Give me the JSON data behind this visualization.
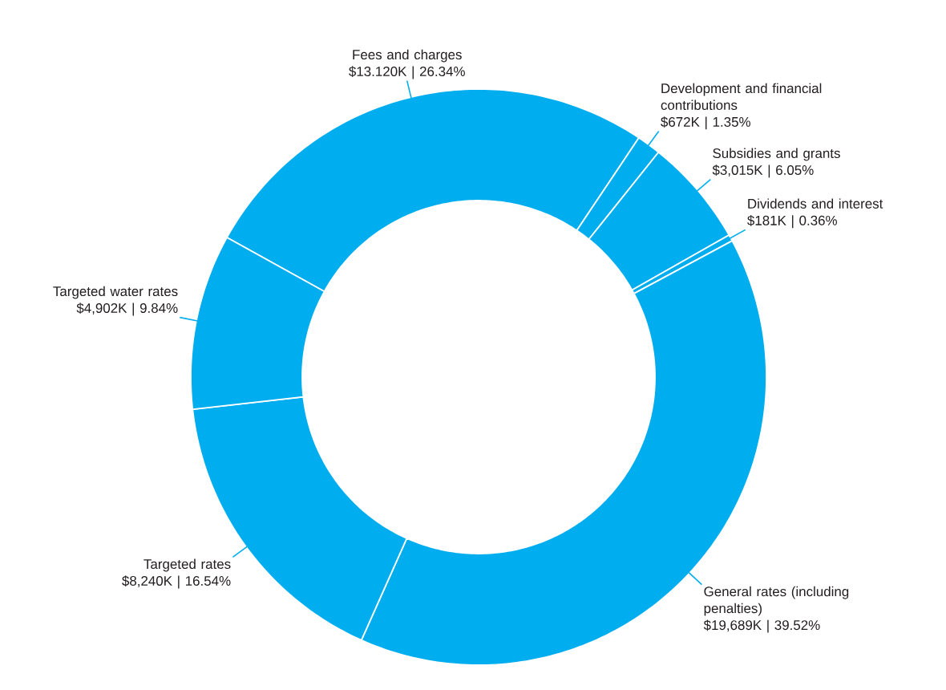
{
  "chart_data": {
    "type": "donut",
    "categories": [
      "Fees and charges",
      "Development and financial contributions",
      "Subsidies and grants",
      "Dividends and interest",
      "General rates (including penalties)",
      "Targeted rates",
      "Targeted water rates"
    ],
    "values": [
      26.34,
      1.35,
      6.05,
      0.36,
      39.52,
      16.54,
      9.84
    ],
    "value_labels": [
      "$13.120K | 26.34%",
      "$672K | 1.35%",
      "$3,015K | 6.05%",
      "$181K | 0.36%",
      "$19,689K | 39.52%",
      "$8,240K | 16.54%",
      "$4,902K | 9.84%"
    ],
    "colors": [
      "#00aeef",
      "#00aeef",
      "#00aeef",
      "#00aeef",
      "#00aeef",
      "#00aeef",
      "#00aeef"
    ]
  }
}
